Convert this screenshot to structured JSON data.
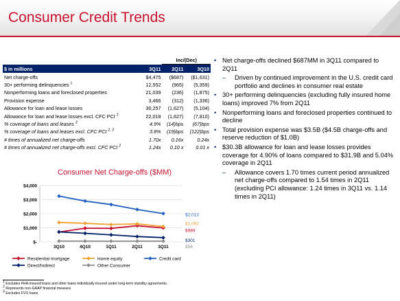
{
  "slide": {
    "title": "Consumer Credit Trends"
  },
  "table": {
    "group_header": "Inc/(Dec)",
    "columns": [
      "$ in millions",
      "3Q11",
      "2Q11",
      "3Q10"
    ],
    "rows": [
      {
        "label": "Net charge-offs",
        "sup": "",
        "italic": false,
        "v": [
          "$4,475",
          "($687)",
          "($1,631)"
        ]
      },
      {
        "label": "30+ performing delinquencies",
        "sup": "1",
        "italic": false,
        "v": [
          "12,552",
          "(965)",
          "(5,359)"
        ]
      },
      {
        "label": "Nonperforming loans and foreclosed properties",
        "sup": "",
        "italic": false,
        "v": [
          "21,039",
          "(236)",
          "(1,875)"
        ]
      },
      {
        "label": "Provision expense",
        "sup": "",
        "italic": false,
        "v": [
          "3,466",
          "(312)",
          "(1,336)"
        ]
      },
      {
        "label": "Allowance for loan and lease losses",
        "sup": "",
        "italic": false,
        "v": [
          "30,257",
          "(1,627)",
          "(5,104)"
        ]
      },
      {
        "label": "Allowance for loan and lease losses excl. CFC PCI",
        "sup": "2",
        "italic": false,
        "v": [
          "22,018",
          "(1,627)",
          "(7,810)"
        ]
      },
      {
        "label": "% coverage of loans and leases",
        "sup": "3",
        "italic": true,
        "v": [
          "4.9%",
          "(14)bps",
          "(67)bps"
        ]
      },
      {
        "label": "% coverage of loans and leases excl. CFC PCI",
        "sup": "2, 3",
        "italic": true,
        "v": [
          "3.8%",
          "(19)bps",
          "(122)bps"
        ]
      },
      {
        "label": "# times of annualized net charge-offs",
        "sup": "",
        "italic": true,
        "v": [
          "1.70x",
          "0.16x",
          "0.24x"
        ]
      },
      {
        "label": "# times of annualized net charge-offs excl. CFC PCI",
        "sup": "2",
        "italic": true,
        "v": [
          "1.24x",
          "0.10 x",
          "0.01 x"
        ]
      }
    ]
  },
  "bullets": [
    {
      "level": 1,
      "text": "Net charge-offs declined $687MM in 3Q11 compared to 2Q11"
    },
    {
      "level": 2,
      "text": "Driven by continued improvement in the U.S. credit card portfolio and declines in consumer real estate"
    },
    {
      "level": 1,
      "text": "30+ performing delinquencies (excluding fully insured home loans) improved 7% from 2Q11"
    },
    {
      "level": 1,
      "text": "Nonperforming loans and foreclosed properties continued to decline"
    },
    {
      "level": 1,
      "text": "Total provision expense was $3.5B ($4.5B charge-offs and reserve reduction of $1.0B)"
    },
    {
      "level": 1,
      "text": "$30.3B allowance for loan and lease losses provides coverage for 4.90% of loans compared to $31.9B and 5.04% coverage in 2Q11"
    },
    {
      "level": 2,
      "text": "Allowance covers 1.70 times current period annualized net charge-offs compared to 1.54 times in 2Q11 (excluding PCI allowance: 1.24 times in 3Q11 vs. 1.14 times in 2Q11)"
    }
  ],
  "chart_data": {
    "type": "line",
    "title": "Consumer Net Charge-offs ($MM)",
    "categories": [
      "3Q10",
      "4Q10",
      "1Q11",
      "2Q11",
      "3Q11"
    ],
    "ylim": [
      0,
      4000
    ],
    "yticks": [
      0,
      1000,
      2000,
      3000,
      4000
    ],
    "ytick_labels": [
      "$-",
      "$1,000",
      "$2,000",
      "$3,000",
      "$4,000"
    ],
    "grid": true,
    "legend_position": "bottom",
    "series": [
      {
        "name": "Residential mortgage",
        "color": "#c8102e",
        "values": [
          700,
          970,
          960,
          1150,
          989
        ],
        "end_label": "$989"
      },
      {
        "name": "Home equity",
        "color": "#f0a030",
        "values": [
          1380,
          1320,
          1230,
          1280,
          1092
        ],
        "end_label": "$1,092"
      },
      {
        "name": "Credit card",
        "color": "#1f5fbf",
        "values": [
          3250,
          2900,
          2650,
          2300,
          2013
        ],
        "end_label": "$2,013"
      },
      {
        "name": "Direct/Indirect",
        "color": "#012169",
        "values": [
          710,
          610,
          500,
          380,
          301
        ],
        "end_label": "$301"
      },
      {
        "name": "Other Consumer",
        "color": "#8c8c8c",
        "values": [
          60,
          55,
          50,
          55,
          56
        ],
        "end_label": "$56"
      }
    ]
  },
  "footnotes": [
    {
      "num": "1",
      "text": "Excludes FHA-insured loans and other loans individually insured under long-term standby agreements."
    },
    {
      "num": "2",
      "text": "Represents non-GAAP financial measure."
    },
    {
      "num": "3",
      "text": "Excludes FVO loans."
    }
  ],
  "colors": {
    "brand_red": "#c8102e",
    "brand_navy": "#012169"
  }
}
